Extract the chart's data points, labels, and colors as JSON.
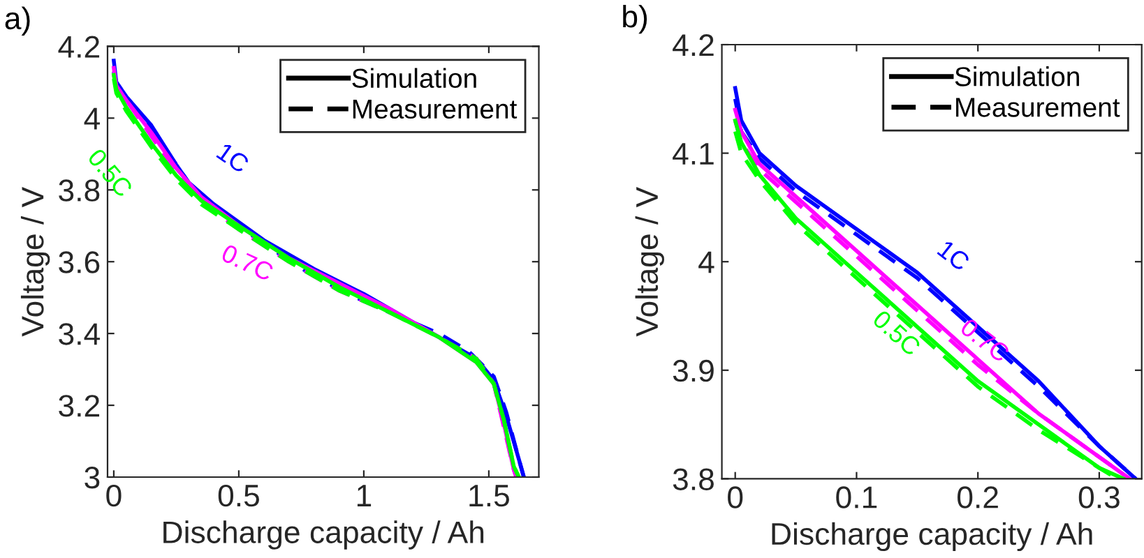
{
  "chart_data": [
    {
      "type": "line",
      "title": "a)",
      "xlabel": "Discharge capacity / Ah",
      "ylabel": "Voltage / V",
      "xlim": [
        -0.025,
        1.7
      ],
      "ylim": [
        3,
        4.2
      ],
      "xticks": [
        0,
        0.5,
        1,
        1.5
      ],
      "yticks": [
        3,
        3.2,
        3.4,
        3.6,
        3.8,
        4,
        4.2
      ],
      "grid": false,
      "series": [
        {
          "name": "1C",
          "color": "#0000ff",
          "line_style": "solid",
          "x": [
            0,
            0.01,
            0.05,
            0.15,
            0.25,
            0.3,
            0.4,
            0.6,
            0.8,
            1.0,
            1.2,
            1.35,
            1.45,
            1.52,
            1.57,
            1.62,
            1.64
          ],
          "values": [
            4.16,
            4.1,
            4.06,
            3.98,
            3.87,
            3.82,
            3.76,
            3.66,
            3.58,
            3.51,
            3.43,
            3.37,
            3.33,
            3.27,
            3.17,
            3.05,
            3.0
          ]
        },
        {
          "color": "#0000ff",
          "line_style": "dashed",
          "x": [
            0,
            0.01,
            0.05,
            0.15,
            0.3,
            0.4,
            0.6,
            0.8,
            1.0,
            1.2,
            1.3,
            1.42,
            1.52,
            1.57,
            1.62,
            1.64
          ],
          "values": [
            4.13,
            4.1,
            4.06,
            3.97,
            3.82,
            3.75,
            3.65,
            3.56,
            3.49,
            3.43,
            3.4,
            3.35,
            3.28,
            3.18,
            3.05,
            3.0
          ]
        },
        {
          "name": "0.7C",
          "color": "#ff00ff",
          "line_style": "solid",
          "x": [
            0,
            0.01,
            0.05,
            0.15,
            0.25,
            0.35,
            0.5,
            0.7,
            0.9,
            1.1,
            1.3,
            1.45,
            1.52,
            1.56,
            1.6,
            1.61
          ],
          "values": [
            4.14,
            4.09,
            4.05,
            3.96,
            3.86,
            3.78,
            3.7,
            3.61,
            3.54,
            3.47,
            3.39,
            3.32,
            3.26,
            3.15,
            3.02,
            3.0
          ]
        },
        {
          "color": "#ff00ff",
          "line_style": "dashed",
          "x": [
            0,
            0.01,
            0.05,
            0.15,
            0.25,
            0.35,
            0.5,
            0.7,
            0.9,
            1.1,
            1.3,
            1.45,
            1.52,
            1.56,
            1.6,
            1.61
          ],
          "values": [
            4.12,
            4.09,
            4.05,
            3.95,
            3.85,
            3.77,
            3.69,
            3.6,
            3.52,
            3.46,
            3.39,
            3.33,
            3.26,
            3.14,
            3.02,
            3.0
          ]
        },
        {
          "name": "0.5C",
          "color": "#00ff00",
          "line_style": "solid",
          "x": [
            0,
            0.01,
            0.05,
            0.15,
            0.25,
            0.35,
            0.5,
            0.7,
            0.9,
            1.1,
            1.3,
            1.45,
            1.52,
            1.56,
            1.6,
            1.62
          ],
          "values": [
            4.12,
            4.08,
            4.03,
            3.93,
            3.84,
            3.77,
            3.7,
            3.61,
            3.53,
            3.46,
            3.39,
            3.32,
            3.26,
            3.16,
            3.03,
            3.0
          ]
        },
        {
          "color": "#00ff00",
          "line_style": "dashed",
          "x": [
            0,
            0.01,
            0.05,
            0.15,
            0.25,
            0.35,
            0.5,
            0.7,
            0.9,
            1.1,
            1.3,
            1.45,
            1.52,
            1.56,
            1.6,
            1.62
          ],
          "values": [
            4.11,
            4.07,
            4.02,
            3.92,
            3.83,
            3.76,
            3.69,
            3.6,
            3.52,
            3.46,
            3.39,
            3.33,
            3.26,
            3.16,
            3.03,
            3.0
          ]
        }
      ],
      "annotations": [
        "Simulation",
        "Measurement"
      ]
    },
    {
      "type": "line",
      "title": "b)",
      "xlabel": "Discharge capacity / Ah",
      "ylabel": "Voltage / V",
      "xlim": [
        -0.011,
        0.335
      ],
      "ylim": [
        3.8,
        4.2
      ],
      "xticks": [
        0,
        0.1,
        0.2,
        0.3
      ],
      "yticks": [
        3.8,
        3.9,
        4,
        4.1,
        4.2
      ],
      "grid": false,
      "series": [
        {
          "name": "1C",
          "color": "#0000ff",
          "line_style": "solid",
          "x": [
            0,
            0.005,
            0.02,
            0.05,
            0.1,
            0.15,
            0.2,
            0.25,
            0.3,
            0.33
          ],
          "values": [
            4.16,
            4.13,
            4.1,
            4.07,
            4.03,
            3.99,
            3.94,
            3.89,
            3.83,
            3.8
          ]
        },
        {
          "color": "#0000ff",
          "line_style": "dashed",
          "x": [
            0,
            0.005,
            0.02,
            0.05,
            0.1,
            0.15,
            0.2,
            0.25,
            0.3,
            0.33
          ],
          "values": [
            4.15,
            4.12,
            4.095,
            4.065,
            4.025,
            3.985,
            3.935,
            3.885,
            3.83,
            3.8
          ]
        },
        {
          "name": "0.7C",
          "color": "#ff00ff",
          "line_style": "solid",
          "x": [
            0,
            0.005,
            0.02,
            0.05,
            0.1,
            0.15,
            0.2,
            0.25,
            0.3,
            0.325
          ],
          "values": [
            4.14,
            4.12,
            4.09,
            4.06,
            4.01,
            3.96,
            3.91,
            3.86,
            3.82,
            3.8
          ]
        },
        {
          "color": "#ff00ff",
          "line_style": "dashed",
          "x": [
            0,
            0.005,
            0.02,
            0.05,
            0.1,
            0.15,
            0.2,
            0.25,
            0.3,
            0.325
          ],
          "values": [
            4.13,
            4.11,
            4.085,
            4.055,
            4.005,
            3.955,
            3.905,
            3.86,
            3.82,
            3.8
          ]
        },
        {
          "name": "0.5C",
          "color": "#00ff00",
          "line_style": "solid",
          "x": [
            0,
            0.005,
            0.02,
            0.05,
            0.1,
            0.15,
            0.2,
            0.25,
            0.3,
            0.32
          ],
          "values": [
            4.13,
            4.11,
            4.08,
            4.04,
            3.99,
            3.94,
            3.89,
            3.85,
            3.81,
            3.8
          ]
        },
        {
          "color": "#00ff00",
          "line_style": "dashed",
          "x": [
            0,
            0.005,
            0.02,
            0.05,
            0.1,
            0.15,
            0.2,
            0.25,
            0.3,
            0.315
          ],
          "values": [
            4.12,
            4.1,
            4.075,
            4.035,
            3.985,
            3.935,
            3.885,
            3.845,
            3.81,
            3.8
          ]
        }
      ],
      "annotations": [
        "Simulation",
        "Measurement"
      ]
    }
  ]
}
